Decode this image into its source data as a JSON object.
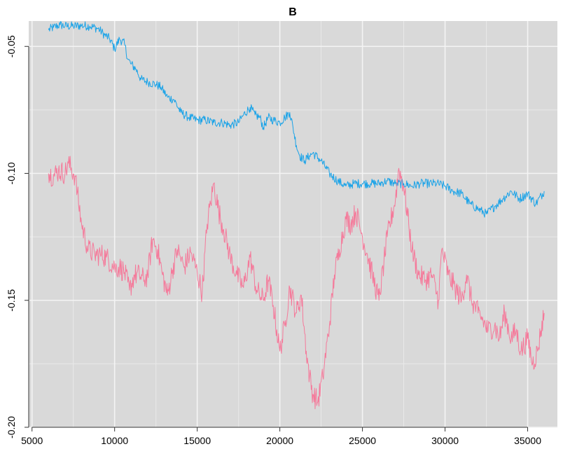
{
  "chart_data": {
    "type": "line",
    "title": "B",
    "xlabel": "",
    "ylabel": "",
    "xlim": [
      4800,
      36800
    ],
    "ylim": [
      -0.2,
      -0.04
    ],
    "grid": true,
    "background": "#d9d9d9",
    "x_ticks": [
      5000,
      10000,
      15000,
      20000,
      25000,
      30000,
      35000
    ],
    "x_tick_labels": [
      "5000",
      "10000",
      "15000",
      "20000",
      "25000",
      "30000",
      "35000"
    ],
    "y_ticks": [
      -0.2,
      -0.15,
      -0.1,
      -0.05
    ],
    "y_tick_labels": [
      "-0.20",
      "-0.15",
      "-0.10",
      "-0.05"
    ],
    "series": [
      {
        "color": "#1aa3e8",
        "noise": 0.0018,
        "x": [
          6000,
          6300,
          6700,
          7000,
          7500,
          8000,
          8500,
          9000,
          9400,
          9700,
          10000,
          10300,
          10600,
          10800,
          11000,
          11300,
          11600,
          12000,
          12500,
          12800,
          13200,
          13600,
          14000,
          14500,
          15000,
          15500,
          16000,
          16500,
          17000,
          17500,
          17800,
          18200,
          18500,
          18800,
          19000,
          19300,
          19600,
          20000,
          20300,
          20600,
          20800,
          21000,
          21200,
          21500,
          21800,
          22000,
          22500,
          23000,
          23500,
          24000,
          24500,
          25000,
          25500,
          26000,
          26500,
          27000,
          27500,
          28000,
          28500,
          29000,
          29500,
          30000,
          30500,
          31000,
          31500,
          32000,
          32500,
          33000,
          33500,
          34000,
          34500,
          35000,
          35500,
          36000
        ],
        "y": [
          -0.0435,
          -0.0425,
          -0.0415,
          -0.042,
          -0.042,
          -0.0418,
          -0.042,
          -0.043,
          -0.0455,
          -0.047,
          -0.051,
          -0.047,
          -0.049,
          -0.055,
          -0.057,
          -0.059,
          -0.063,
          -0.064,
          -0.065,
          -0.066,
          -0.07,
          -0.071,
          -0.076,
          -0.078,
          -0.079,
          -0.079,
          -0.08,
          -0.08,
          -0.081,
          -0.08,
          -0.077,
          -0.074,
          -0.077,
          -0.078,
          -0.082,
          -0.078,
          -0.079,
          -0.08,
          -0.078,
          -0.076,
          -0.082,
          -0.089,
          -0.093,
          -0.095,
          -0.093,
          -0.092,
          -0.095,
          -0.1,
          -0.103,
          -0.105,
          -0.104,
          -0.104,
          -0.104,
          -0.104,
          -0.103,
          -0.104,
          -0.104,
          -0.105,
          -0.104,
          -0.104,
          -0.104,
          -0.105,
          -0.107,
          -0.108,
          -0.112,
          -0.114,
          -0.116,
          -0.113,
          -0.11,
          -0.107,
          -0.11,
          -0.108,
          -0.112,
          -0.107
        ]
      },
      {
        "color": "#f5799a",
        "noise": 0.0045,
        "x": [
          6000,
          6300,
          6600,
          7000,
          7200,
          7600,
          8000,
          8400,
          8800,
          9200,
          9500,
          10000,
          10300,
          10600,
          10900,
          11200,
          11500,
          11800,
          12000,
          12300,
          12600,
          12900,
          13200,
          13500,
          13800,
          14200,
          14600,
          15000,
          15300,
          15600,
          16000,
          16300,
          16600,
          17000,
          17400,
          17800,
          18200,
          18600,
          19000,
          19300,
          19600,
          20000,
          20300,
          20600,
          21000,
          21300,
          21600,
          21800,
          22000,
          22300,
          22600,
          23000,
          23300,
          23600,
          24000,
          24300,
          24600,
          25000,
          25300,
          25600,
          26000,
          26300,
          26500,
          27000,
          27200,
          27500,
          27800,
          28000,
          28400,
          28800,
          29200,
          29600,
          29800,
          30200,
          30600,
          31000,
          31300,
          31600,
          32000,
          32300,
          32600,
          33000,
          33300,
          33600,
          34000,
          34300,
          34600,
          35000,
          35300,
          35600,
          35800,
          36000
        ],
        "y": [
          -0.1,
          -0.101,
          -0.099,
          -0.1,
          -0.096,
          -0.101,
          -0.12,
          -0.13,
          -0.132,
          -0.132,
          -0.133,
          -0.137,
          -0.137,
          -0.139,
          -0.146,
          -0.14,
          -0.14,
          -0.142,
          -0.14,
          -0.126,
          -0.13,
          -0.14,
          -0.148,
          -0.138,
          -0.13,
          -0.137,
          -0.131,
          -0.139,
          -0.147,
          -0.12,
          -0.104,
          -0.115,
          -0.122,
          -0.133,
          -0.14,
          -0.145,
          -0.133,
          -0.146,
          -0.15,
          -0.142,
          -0.152,
          -0.17,
          -0.16,
          -0.145,
          -0.155,
          -0.148,
          -0.17,
          -0.18,
          -0.187,
          -0.19,
          -0.18,
          -0.16,
          -0.14,
          -0.13,
          -0.118,
          -0.12,
          -0.115,
          -0.125,
          -0.132,
          -0.14,
          -0.15,
          -0.135,
          -0.125,
          -0.11,
          -0.098,
          -0.105,
          -0.12,
          -0.13,
          -0.14,
          -0.142,
          -0.14,
          -0.15,
          -0.13,
          -0.14,
          -0.145,
          -0.15,
          -0.14,
          -0.15,
          -0.155,
          -0.158,
          -0.162,
          -0.16,
          -0.165,
          -0.155,
          -0.165,
          -0.162,
          -0.17,
          -0.165,
          -0.175,
          -0.17,
          -0.162,
          -0.155
        ]
      }
    ]
  }
}
